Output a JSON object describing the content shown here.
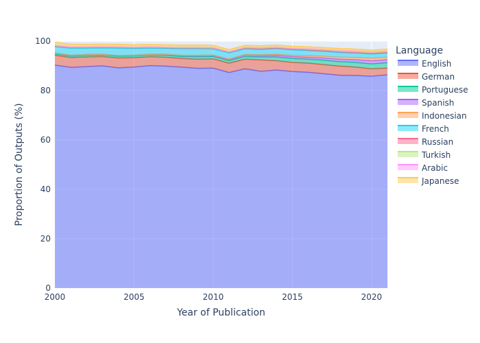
{
  "chart_data": {
    "type": "area",
    "stacked": true,
    "title": "",
    "xlabel": "Year of Publication",
    "ylabel": "Proportion of Outputs (%)",
    "xlim": [
      2000,
      2021
    ],
    "ylim": [
      0,
      100
    ],
    "x_ticks": [
      2000,
      2005,
      2010,
      2015,
      2020
    ],
    "y_ticks": [
      0,
      20,
      40,
      60,
      80,
      100
    ],
    "grid": true,
    "legend_title": "Language",
    "legend_position": "right",
    "x": [
      2000,
      2001,
      2002,
      2003,
      2004,
      2005,
      2006,
      2007,
      2008,
      2009,
      2010,
      2011,
      2012,
      2013,
      2014,
      2015,
      2016,
      2017,
      2018,
      2019,
      2020,
      2021
    ],
    "series": [
      {
        "name": "English",
        "color": "#636efa",
        "values": [
          90.3,
          89.4,
          89.7,
          90.0,
          89.2,
          89.5,
          90.1,
          89.9,
          89.5,
          89.0,
          89.1,
          87.3,
          88.8,
          87.8,
          88.3,
          87.7,
          87.4,
          86.8,
          86.2,
          86.1,
          85.8,
          86.4
        ]
      },
      {
        "name": "German",
        "color": "#ef553b",
        "values": [
          4.0,
          4.0,
          3.9,
          3.8,
          4.0,
          3.8,
          3.6,
          3.6,
          3.5,
          3.7,
          3.7,
          3.8,
          3.9,
          4.6,
          3.8,
          3.7,
          3.7,
          3.7,
          3.7,
          3.4,
          3.0,
          2.7
        ]
      },
      {
        "name": "Portuguese",
        "color": "#00cc96",
        "values": [
          0.6,
          0.6,
          0.7,
          0.6,
          0.7,
          0.7,
          0.7,
          0.8,
          0.8,
          1.0,
          1.0,
          1.0,
          1.1,
          1.2,
          1.5,
          1.6,
          1.6,
          1.8,
          1.8,
          1.9,
          2.0,
          2.2
        ]
      },
      {
        "name": "Spanish",
        "color": "#ab63fa",
        "values": [
          0.3,
          0.3,
          0.3,
          0.3,
          0.3,
          0.3,
          0.3,
          0.4,
          0.4,
          0.5,
          0.5,
          0.5,
          0.6,
          0.6,
          0.7,
          0.8,
          0.8,
          0.9,
          1.0,
          1.1,
          1.3,
          1.2
        ]
      },
      {
        "name": "Indonesian",
        "color": "#ffa15a",
        "values": [
          0.0,
          0.0,
          0.0,
          0.0,
          0.0,
          0.0,
          0.0,
          0.0,
          0.1,
          0.1,
          0.1,
          0.2,
          0.2,
          0.3,
          0.4,
          0.5,
          0.6,
          0.7,
          0.8,
          0.9,
          1.0,
          1.0
        ]
      },
      {
        "name": "French",
        "color": "#19d3f3",
        "values": [
          2.6,
          2.9,
          2.6,
          2.6,
          3.0,
          2.8,
          2.5,
          2.4,
          2.7,
          2.7,
          2.5,
          2.5,
          2.3,
          2.2,
          2.3,
          2.2,
          2.1,
          2.0,
          1.9,
          1.8,
          1.7,
          1.7
        ]
      },
      {
        "name": "Russian",
        "color": "#ff6692",
        "values": [
          0.3,
          0.3,
          0.3,
          0.3,
          0.3,
          0.3,
          0.3,
          0.3,
          0.3,
          0.3,
          0.3,
          0.3,
          0.3,
          0.3,
          0.3,
          0.3,
          0.3,
          0.3,
          0.3,
          0.3,
          0.3,
          0.3
        ]
      },
      {
        "name": "Turkish",
        "color": "#b6e880",
        "values": [
          0.1,
          0.1,
          0.1,
          0.1,
          0.1,
          0.1,
          0.1,
          0.1,
          0.1,
          0.1,
          0.1,
          0.1,
          0.2,
          0.2,
          0.2,
          0.2,
          0.3,
          0.3,
          0.3,
          0.3,
          0.3,
          0.3
        ]
      },
      {
        "name": "Arabic",
        "color": "#ff97ff",
        "values": [
          0.1,
          0.1,
          0.1,
          0.1,
          0.1,
          0.1,
          0.1,
          0.1,
          0.1,
          0.1,
          0.1,
          0.1,
          0.1,
          0.1,
          0.1,
          0.1,
          0.1,
          0.1,
          0.2,
          0.2,
          0.2,
          0.2
        ]
      },
      {
        "name": "Japanese",
        "color": "#fecb52",
        "values": [
          1.2,
          1.1,
          1.0,
          1.0,
          1.0,
          0.9,
          0.9,
          0.9,
          0.9,
          0.9,
          0.9,
          0.8,
          0.8,
          0.8,
          0.8,
          0.8,
          0.8,
          0.8,
          0.8,
          0.8,
          0.8,
          0.8
        ]
      }
    ]
  }
}
